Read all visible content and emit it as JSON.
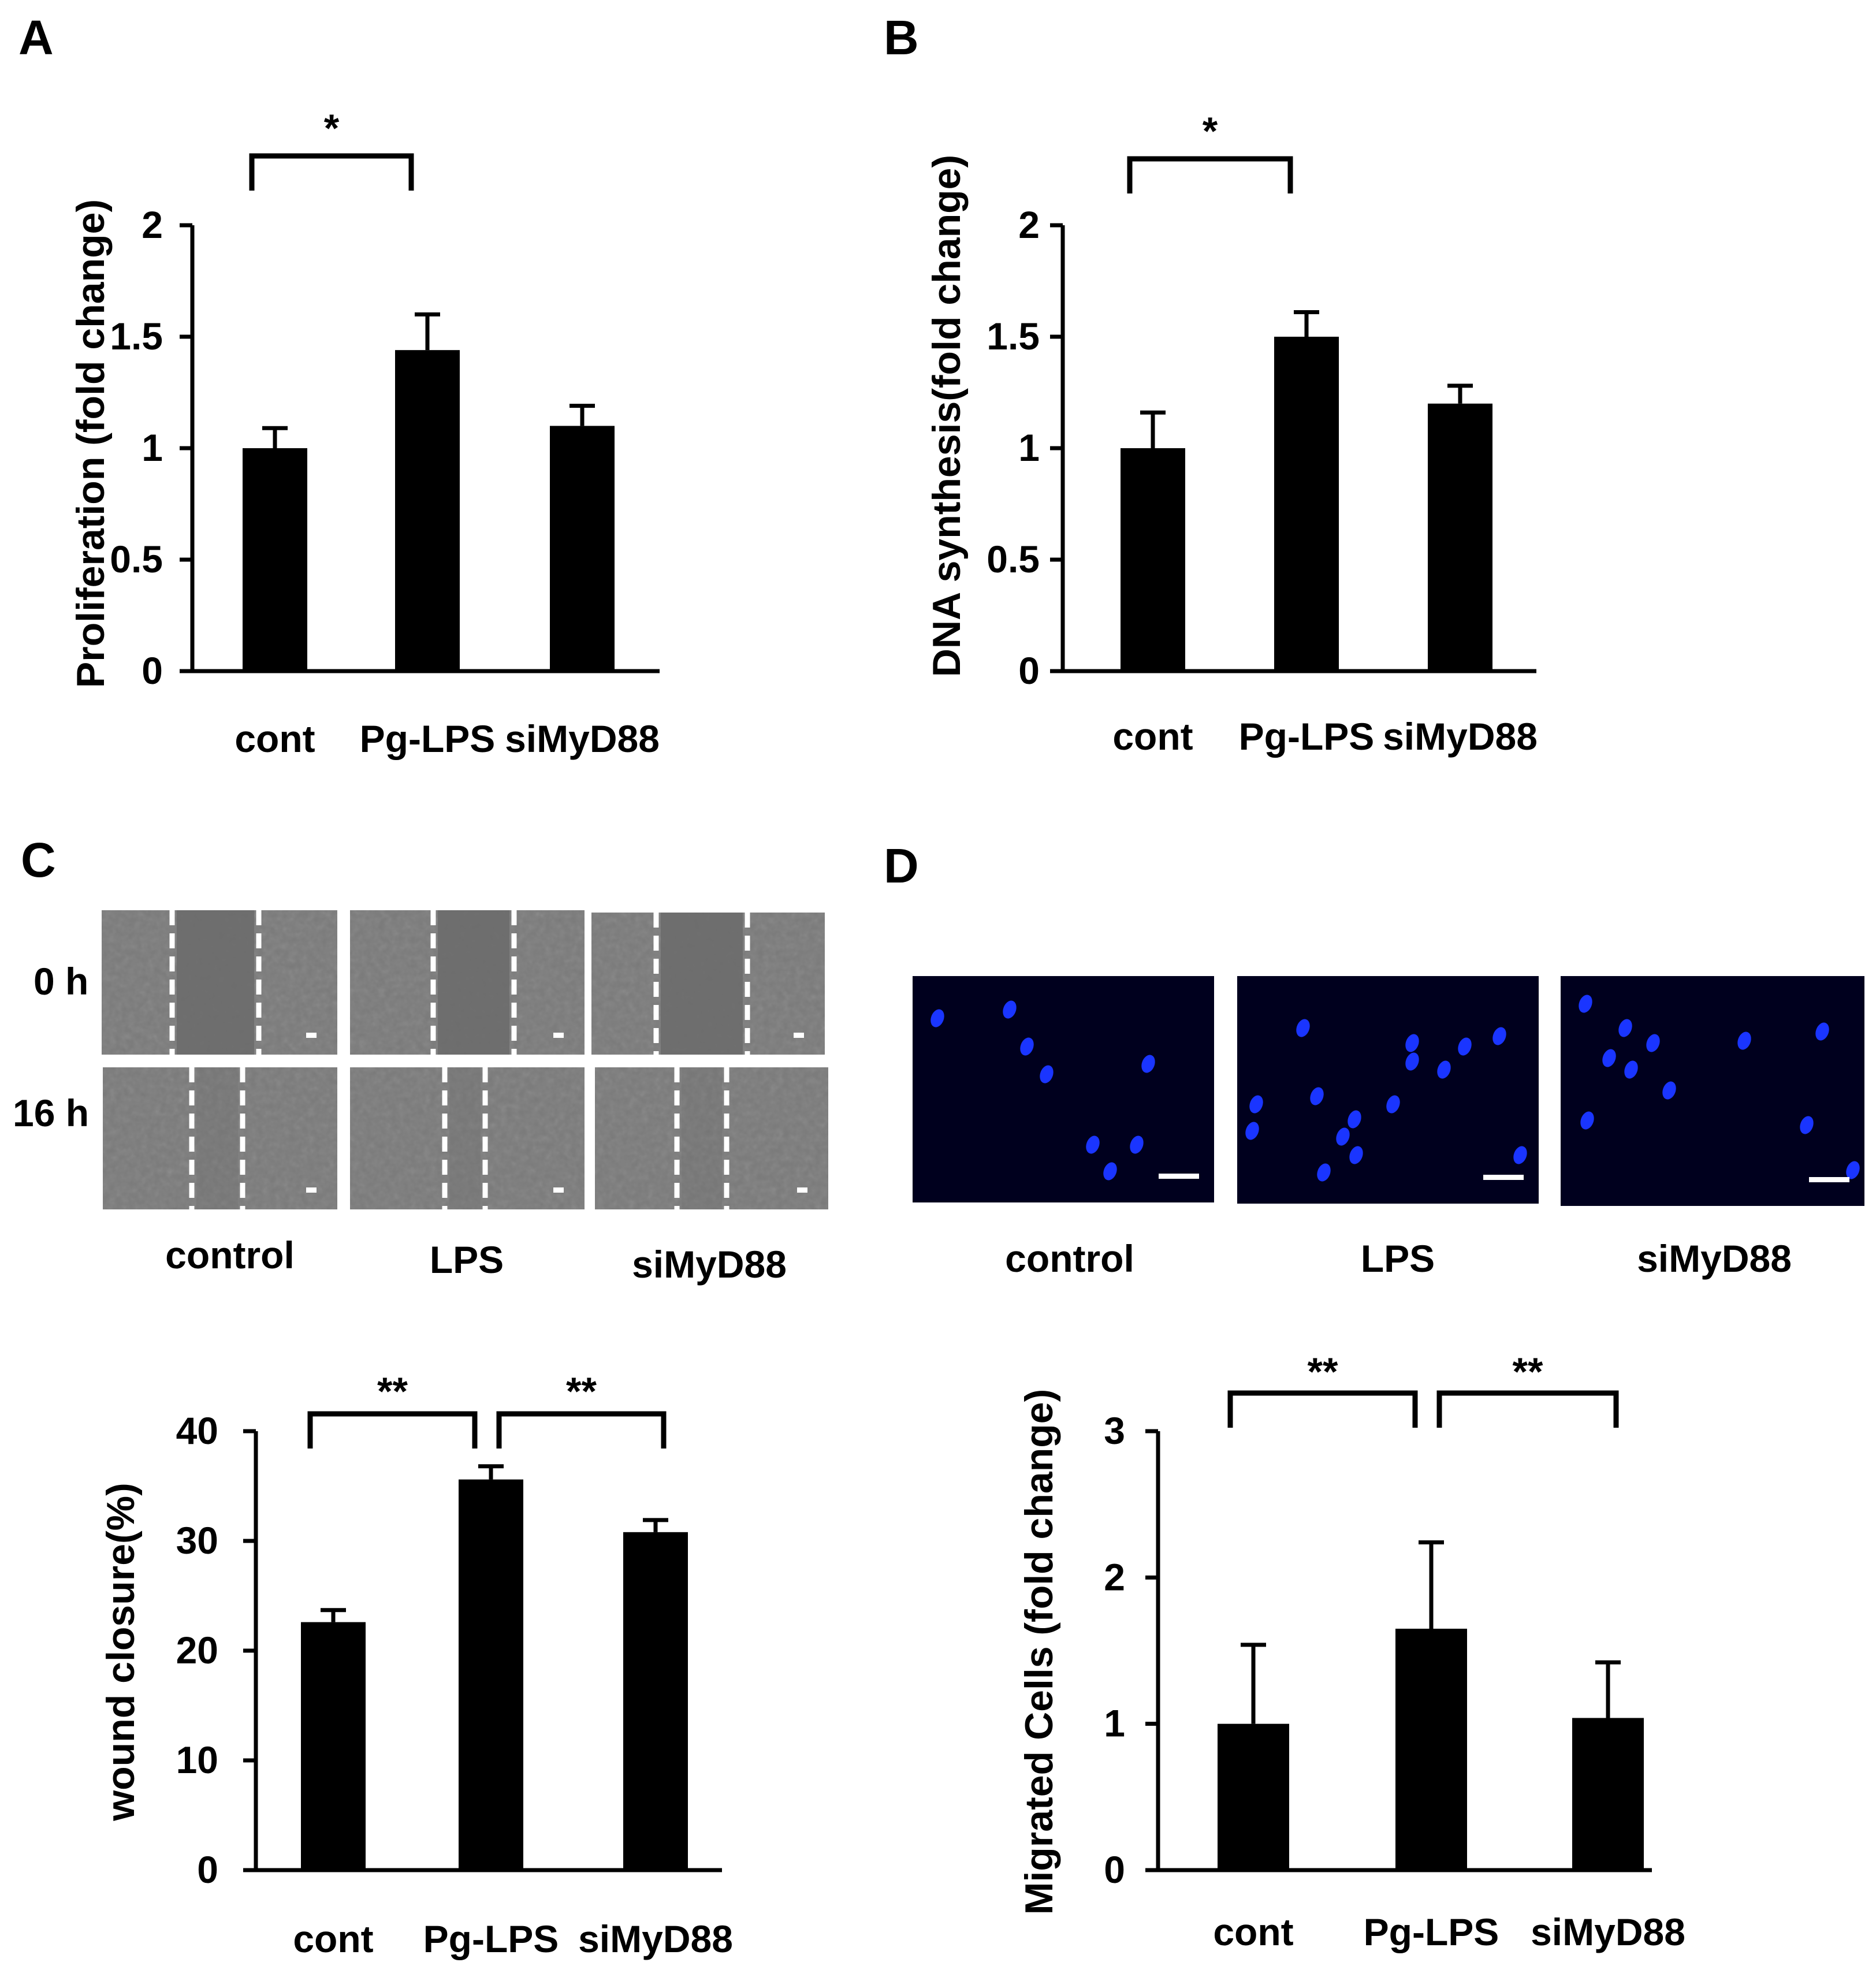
{
  "panels": {
    "A": "A",
    "B": "B",
    "C": "C",
    "D": "D"
  },
  "micrographs": {
    "C": {
      "rows": [
        "0 h",
        "16 h"
      ],
      "columns": [
        "control",
        "LPS",
        "siMyD88"
      ]
    },
    "D": {
      "columns": [
        "control",
        "LPS",
        "siMyD88"
      ]
    }
  },
  "colors": {
    "bar": "#000000",
    "scratch_image": "#7a7a7a",
    "nuclei_background": "#00001e",
    "nuclei": "#1a35ff"
  },
  "chart_data": [
    {
      "id": "A",
      "type": "bar",
      "categories": [
        "cont",
        "Pg-LPS",
        "siMyD88"
      ],
      "values": [
        1.0,
        1.44,
        1.1
      ],
      "errors": [
        0.09,
        0.16,
        0.09
      ],
      "ylabel": "Proliferation (fold change)",
      "xlabel": "",
      "ylim": [
        0,
        2
      ],
      "yticks": [
        0,
        0.5,
        1,
        1.5,
        2
      ],
      "ytick_labels": [
        "0",
        "0.5",
        "1",
        "1.5",
        "2"
      ],
      "significance": [
        {
          "pair": [
            0,
            1
          ],
          "label": "*"
        }
      ]
    },
    {
      "id": "B",
      "type": "bar",
      "categories": [
        "cont",
        "Pg-LPS",
        "siMyD88"
      ],
      "values": [
        1.0,
        1.5,
        1.2
      ],
      "errors": [
        0.16,
        0.11,
        0.08
      ],
      "ylabel": "DNA synthesis(fold change)",
      "xlabel": "",
      "ylim": [
        0,
        2
      ],
      "yticks": [
        0,
        0.5,
        1,
        1.5,
        2
      ],
      "ytick_labels": [
        "0",
        "0.5",
        "1",
        "1.5",
        "2"
      ],
      "significance": [
        {
          "pair": [
            0,
            1
          ],
          "label": "*"
        }
      ]
    },
    {
      "id": "C",
      "type": "bar",
      "categories": [
        "cont",
        "Pg-LPS",
        "siMyD88"
      ],
      "values": [
        22.6,
        35.6,
        30.8
      ],
      "errors": [
        1.1,
        1.2,
        1.1
      ],
      "ylabel": "wound closure(%)",
      "xlabel": "",
      "ylim": [
        0,
        40
      ],
      "yticks": [
        0,
        10,
        20,
        30,
        40
      ],
      "ytick_labels": [
        "0",
        "10",
        "20",
        "30",
        "40"
      ],
      "significance": [
        {
          "pair": [
            0,
            1
          ],
          "label": "**"
        },
        {
          "pair": [
            1,
            2
          ],
          "label": "**"
        }
      ]
    },
    {
      "id": "D",
      "type": "bar",
      "categories": [
        "cont",
        "Pg-LPS",
        "siMyD88"
      ],
      "values": [
        1.0,
        1.65,
        1.04
      ],
      "errors": [
        0.54,
        0.59,
        0.38
      ],
      "ylabel": "Migrated Cells (fold change)",
      "xlabel": "",
      "ylim": [
        0,
        3
      ],
      "yticks": [
        0,
        1,
        2,
        3
      ],
      "ytick_labels": [
        "0",
        "1",
        "2",
        "3"
      ],
      "significance": [
        {
          "pair": [
            0,
            1
          ],
          "label": "**"
        },
        {
          "pair": [
            1,
            2
          ],
          "label": "**"
        }
      ]
    }
  ]
}
